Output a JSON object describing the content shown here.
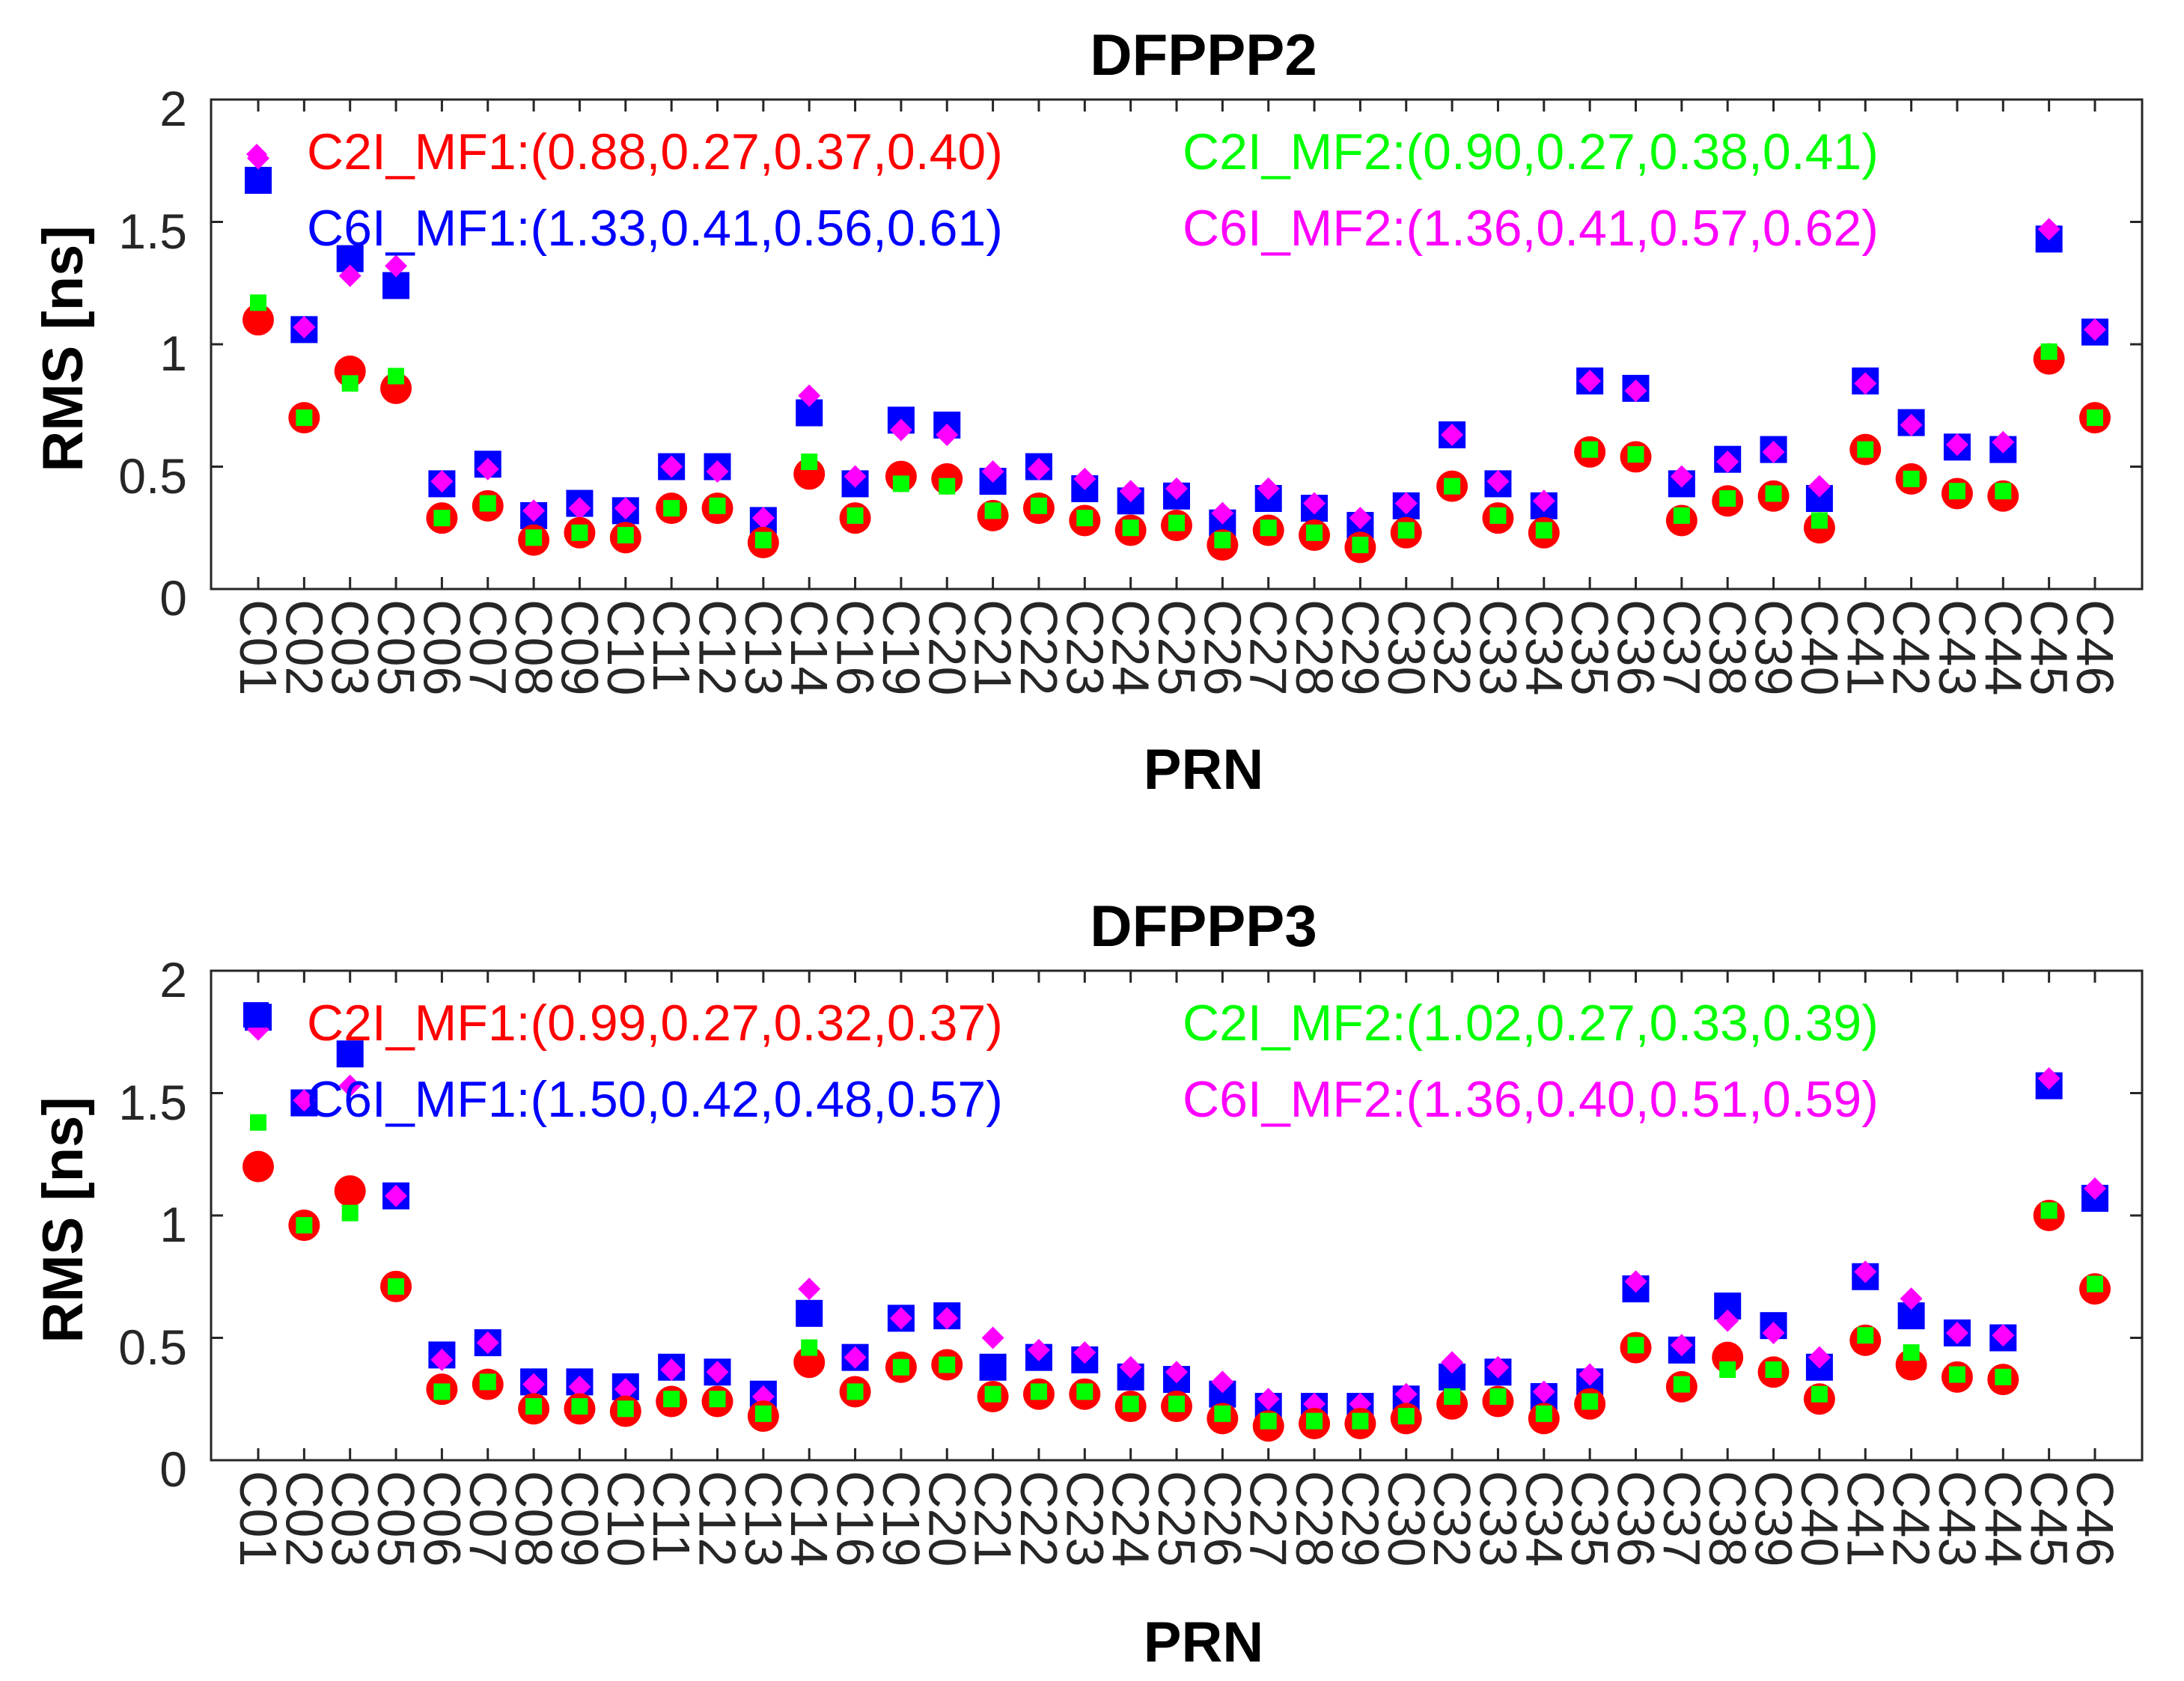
{
  "chart_data": [
    {
      "type": "scatter",
      "title": "DFPPP2",
      "xlabel": "PRN",
      "ylabel": "RMS [ns]",
      "ylim": [
        0,
        2
      ],
      "yticks": [
        "0",
        "0.5",
        "1",
        "1.5",
        "2"
      ],
      "grid": false,
      "legend_placement": "top",
      "categories": [
        "C01",
        "C02",
        "C03",
        "C05",
        "C06",
        "C07",
        "C08",
        "C09",
        "C10",
        "C11",
        "C12",
        "C13",
        "C14",
        "C16",
        "C19",
        "C20",
        "C21",
        "C22",
        "C23",
        "C24",
        "C25",
        "C26",
        "C27",
        "C28",
        "C29",
        "C30",
        "C32",
        "C33",
        "C34",
        "C35",
        "C36",
        "C37",
        "C38",
        "C39",
        "C40",
        "C41",
        "C42",
        "C43",
        "C44",
        "C45",
        "C46"
      ],
      "series": [
        {
          "name": "C2I_MF1",
          "marker": "circle",
          "color": "#ff0000",
          "legend_text": "C2I_MF1:(0.88,0.27,0.37,0.40)",
          "values": [
            1.1,
            0.7,
            0.89,
            0.82,
            0.29,
            0.34,
            0.2,
            0.23,
            0.21,
            0.33,
            0.33,
            0.19,
            0.47,
            0.29,
            0.46,
            0.45,
            0.3,
            0.33,
            0.28,
            0.24,
            0.26,
            0.18,
            0.24,
            0.22,
            0.17,
            0.23,
            0.42,
            0.29,
            0.23,
            0.56,
            0.54,
            0.28,
            0.36,
            0.38,
            0.25,
            0.57,
            0.45,
            0.39,
            0.38,
            0.94,
            0.7
          ]
        },
        {
          "name": "C2I_MF2",
          "marker": "small-square",
          "color": "#00ff00",
          "legend_text": "C2I_MF2:(0.90,0.27,0.38,0.41)",
          "values": [
            1.17,
            0.7,
            0.84,
            0.87,
            0.29,
            0.35,
            0.21,
            0.23,
            0.22,
            0.33,
            0.34,
            0.2,
            0.52,
            0.3,
            0.43,
            0.42,
            0.32,
            0.34,
            0.29,
            0.25,
            0.27,
            0.2,
            0.25,
            0.23,
            0.18,
            0.24,
            0.42,
            0.3,
            0.24,
            0.57,
            0.55,
            0.3,
            0.37,
            0.39,
            0.28,
            0.57,
            0.45,
            0.4,
            0.4,
            0.97,
            0.7
          ]
        },
        {
          "name": "C6I_MF1",
          "marker": "square",
          "color": "#0000ff",
          "legend_text": "C6I_MF1:(1.33,0.41,0.56,0.61)",
          "values": [
            1.67,
            1.06,
            1.35,
            1.24,
            0.43,
            0.51,
            0.3,
            0.35,
            0.32,
            0.5,
            0.5,
            0.28,
            0.72,
            0.43,
            0.69,
            0.67,
            0.44,
            0.5,
            0.41,
            0.36,
            0.38,
            0.27,
            0.37,
            0.33,
            0.26,
            0.34,
            0.63,
            0.43,
            0.34,
            0.85,
            0.82,
            0.43,
            0.53,
            0.57,
            0.37,
            0.85,
            0.68,
            0.58,
            0.57,
            1.43,
            1.05
          ]
        },
        {
          "name": "C6I_MF2",
          "marker": "diamond",
          "color": "#ff00ff",
          "legend_text": "C6I_MF2:(1.36,0.41,0.57,0.62)",
          "values": [
            1.76,
            1.07,
            1.28,
            1.32,
            0.44,
            0.49,
            0.32,
            0.33,
            0.33,
            0.5,
            0.48,
            0.29,
            0.79,
            0.46,
            0.65,
            0.63,
            0.48,
            0.49,
            0.45,
            0.4,
            0.41,
            0.31,
            0.41,
            0.35,
            0.29,
            0.35,
            0.63,
            0.44,
            0.36,
            0.85,
            0.81,
            0.46,
            0.52,
            0.56,
            0.42,
            0.84,
            0.67,
            0.59,
            0.6,
            1.47,
            1.06
          ]
        }
      ]
    },
    {
      "type": "scatter",
      "title": "DFPPP3",
      "xlabel": "PRN",
      "ylabel": "RMS [ns]",
      "ylim": [
        0,
        2
      ],
      "yticks": [
        "0",
        "0.5",
        "1",
        "1.5",
        "2"
      ],
      "grid": false,
      "legend_placement": "top",
      "categories": [
        "C01",
        "C02",
        "C03",
        "C05",
        "C06",
        "C07",
        "C08",
        "C09",
        "C10",
        "C11",
        "C12",
        "C13",
        "C14",
        "C16",
        "C19",
        "C20",
        "C21",
        "C22",
        "C23",
        "C24",
        "C25",
        "C26",
        "C27",
        "C28",
        "C29",
        "C30",
        "C32",
        "C33",
        "C34",
        "C35",
        "C36",
        "C37",
        "C38",
        "C39",
        "C40",
        "C41",
        "C42",
        "C43",
        "C44",
        "C45",
        "C46"
      ],
      "series": [
        {
          "name": "C2I_MF1",
          "marker": "circle",
          "color": "#ff0000",
          "legend_text": "C2I_MF1:(0.99,0.27,0.32,0.37)",
          "values": [
            1.2,
            0.96,
            1.1,
            0.71,
            0.29,
            0.31,
            0.21,
            0.21,
            0.2,
            0.24,
            0.24,
            0.18,
            0.4,
            0.28,
            0.38,
            0.39,
            0.26,
            0.27,
            0.27,
            0.22,
            0.22,
            0.17,
            0.14,
            0.15,
            0.15,
            0.17,
            0.23,
            0.24,
            0.17,
            0.23,
            0.46,
            0.3,
            0.42,
            0.36,
            0.25,
            0.49,
            0.39,
            0.34,
            0.33,
            1.0,
            0.7
          ]
        },
        {
          "name": "C2I_MF2",
          "marker": "small-square",
          "color": "#00ff00",
          "legend_text": "C2I_MF2:(1.02,0.27,0.33,0.39)",
          "values": [
            1.38,
            0.96,
            1.01,
            0.71,
            0.28,
            0.32,
            0.22,
            0.22,
            0.21,
            0.25,
            0.25,
            0.19,
            0.46,
            0.28,
            0.38,
            0.39,
            0.27,
            0.28,
            0.28,
            0.23,
            0.23,
            0.19,
            0.16,
            0.16,
            0.16,
            0.18,
            0.26,
            0.26,
            0.19,
            0.24,
            0.47,
            0.31,
            0.37,
            0.37,
            0.27,
            0.51,
            0.44,
            0.35,
            0.34,
            1.02,
            0.72
          ]
        },
        {
          "name": "C6I_MF1",
          "marker": "square",
          "color": "#0000ff",
          "legend_text": "C6I_MF1:(1.50,0.42,0.48,0.57)",
          "values": [
            1.81,
            1.46,
            1.66,
            1.08,
            0.43,
            0.48,
            0.32,
            0.32,
            0.3,
            0.38,
            0.36,
            0.27,
            0.6,
            0.42,
            0.58,
            0.59,
            0.38,
            0.42,
            0.41,
            0.34,
            0.33,
            0.27,
            0.22,
            0.22,
            0.22,
            0.25,
            0.34,
            0.36,
            0.26,
            0.32,
            0.7,
            0.45,
            0.63,
            0.55,
            0.38,
            0.75,
            0.59,
            0.52,
            0.5,
            1.53,
            1.07
          ]
        },
        {
          "name": "C6I_MF2",
          "marker": "diamond",
          "color": "#ff00ff",
          "legend_text": "C6I_MF2:(1.36,0.40,0.51,0.59)",
          "values": [
            1.76,
            1.47,
            1.53,
            1.08,
            0.41,
            0.48,
            0.31,
            0.3,
            0.29,
            0.37,
            0.36,
            0.26,
            0.7,
            0.42,
            0.58,
            0.58,
            0.5,
            0.45,
            0.44,
            0.38,
            0.36,
            0.32,
            0.25,
            0.23,
            0.23,
            0.27,
            0.4,
            0.38,
            0.28,
            0.35,
            0.73,
            0.47,
            0.57,
            0.52,
            0.42,
            0.77,
            0.66,
            0.52,
            0.51,
            1.56,
            1.11
          ]
        }
      ]
    }
  ]
}
